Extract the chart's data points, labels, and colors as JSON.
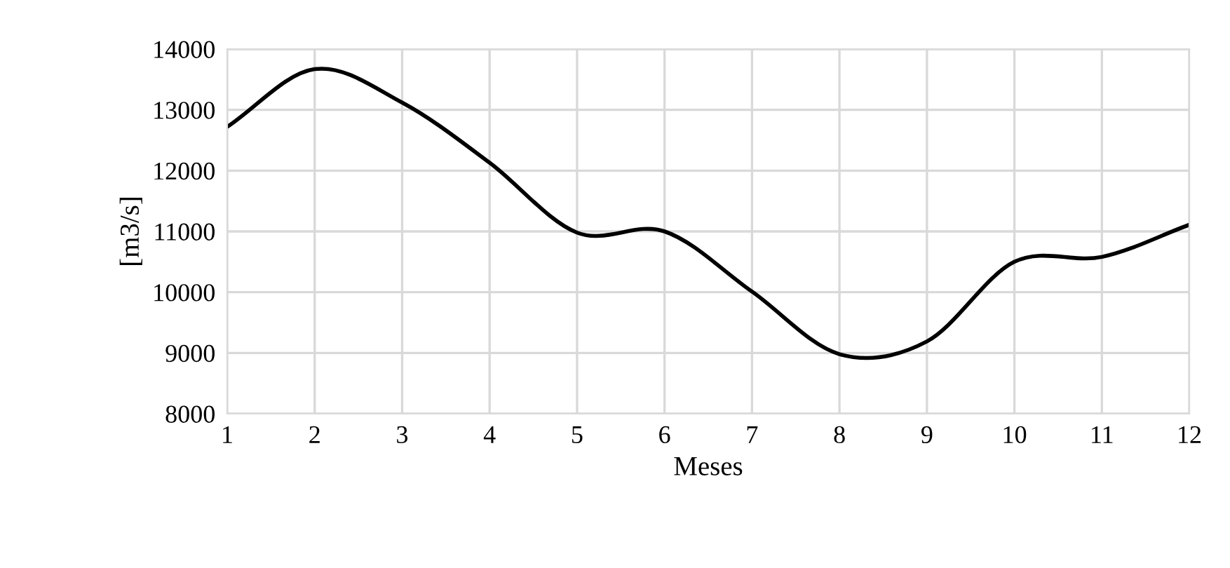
{
  "chart_data": {
    "type": "line",
    "xlabel": "Meses",
    "ylabel": "[m3/s]",
    "x": [
      1,
      2,
      3,
      4,
      5,
      6,
      7,
      8,
      9,
      10,
      11,
      12
    ],
    "series": [
      {
        "color": "#000000",
        "values": [
          12720,
          13670,
          13120,
          12130,
          10980,
          11000,
          10010,
          8980,
          9190,
          10500,
          10580,
          11110
        ]
      }
    ],
    "xlim": [
      1,
      12
    ],
    "xticks": [
      1,
      2,
      3,
      4,
      5,
      6,
      7,
      8,
      9,
      10,
      11,
      12
    ],
    "ylim": [
      8000,
      14000
    ],
    "yticks": [
      8000,
      9000,
      10000,
      11000,
      12000,
      13000,
      14000
    ],
    "grid": true,
    "marker": "none",
    "line_style": "solid"
  }
}
